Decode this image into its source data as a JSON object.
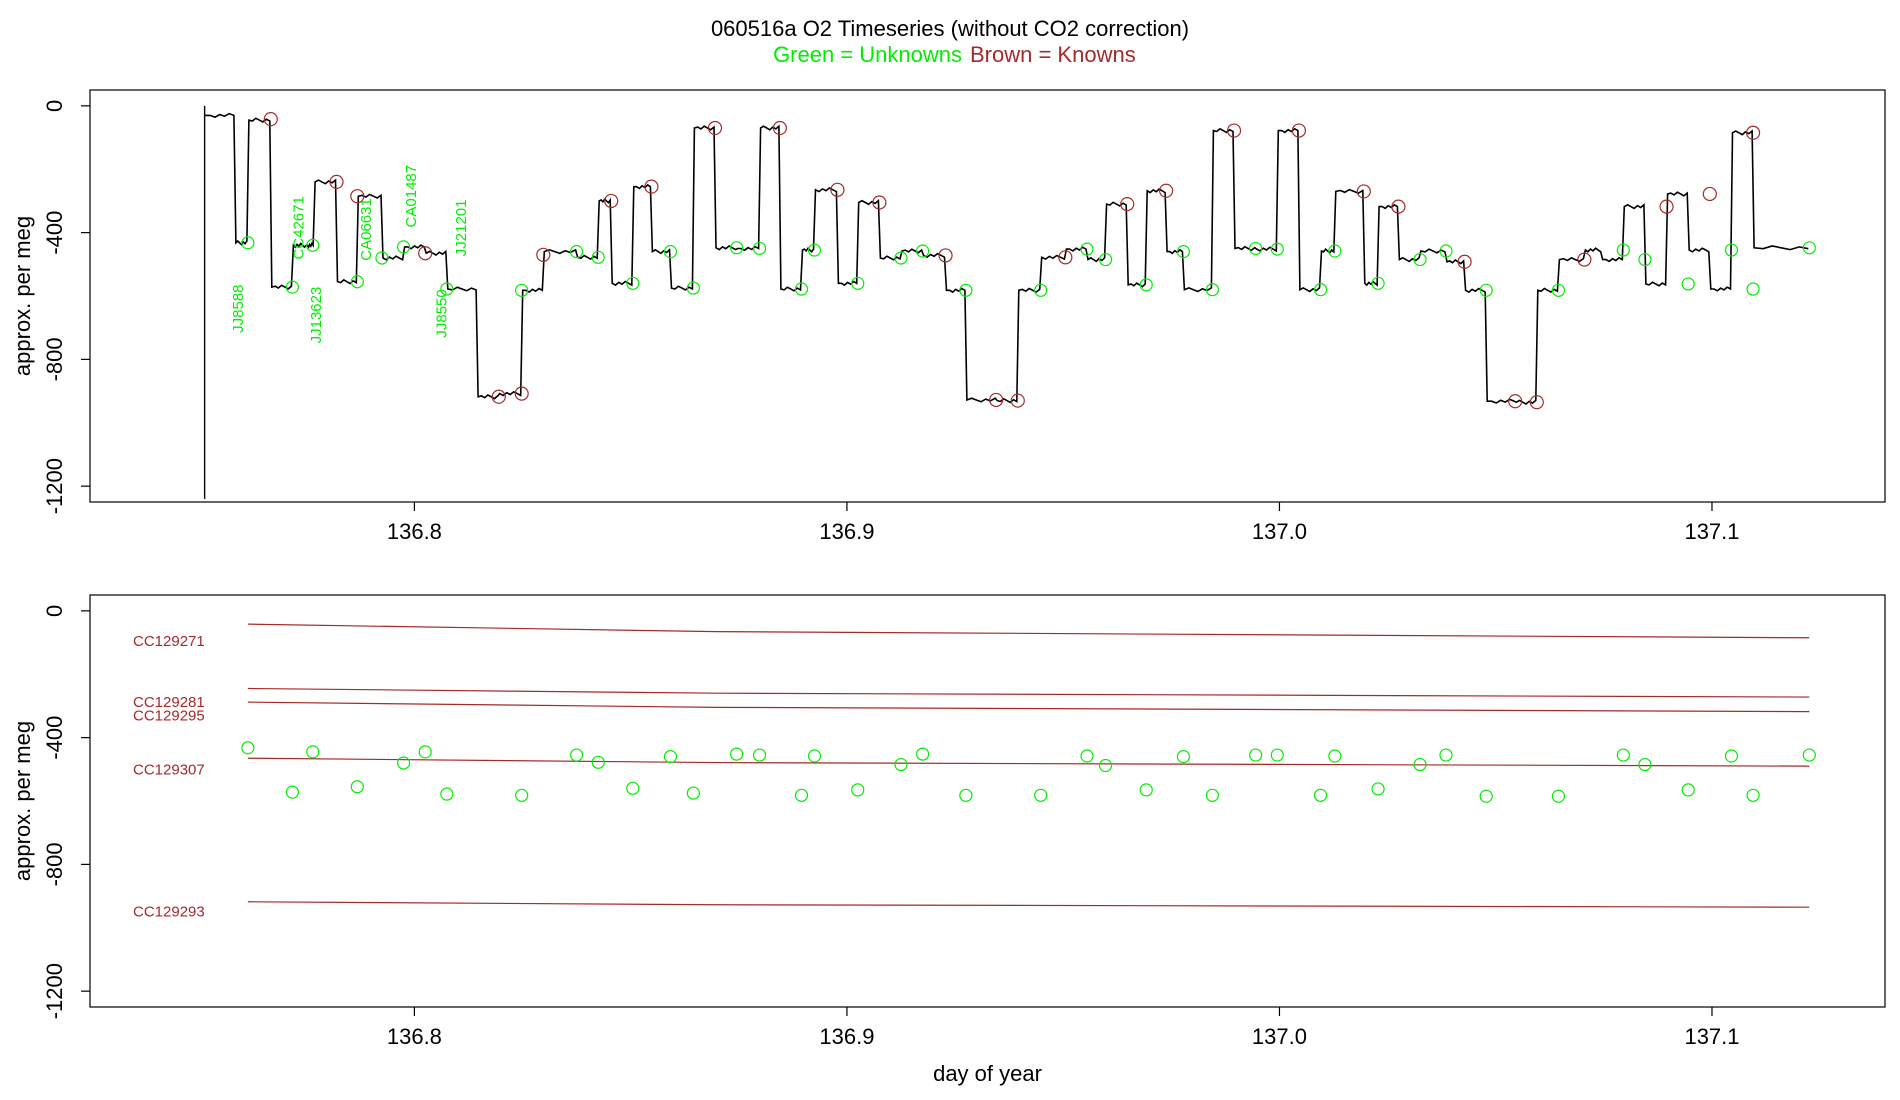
{
  "header": {
    "title": "060516a   O2 Timeseries (without CO2 correction)",
    "legend_unknowns": "Green = Unknowns",
    "legend_knowns": "Brown = Knowns"
  },
  "colors": {
    "unknowns": "#00ee00",
    "knowns": "#a52a2a",
    "trace": "#000000",
    "axis": "#000000"
  },
  "chart_data": [
    {
      "type": "line",
      "panel": "top",
      "ylabel": "approx. per meg",
      "xlabel": "",
      "xlim": [
        136.725,
        137.14
      ],
      "ylim": [
        -1250,
        50
      ],
      "x_ticks": [
        136.8,
        136.9,
        137.0,
        137.1
      ],
      "x_tick_labels": [
        "136.8",
        "136.9",
        "137.0",
        "137.1"
      ],
      "y_ticks": [
        0,
        -400,
        -800,
        -1200
      ],
      "y_tick_labels": [
        "0",
        "-400",
        "-800",
        "-1200"
      ],
      "trace_start_spike": {
        "x": 136.7515,
        "y_from": -1240,
        "y_to": 0
      },
      "trace_steps": [
        [
          136.7515,
          136.7585,
          -30
        ],
        [
          136.7585,
          136.7615,
          -432
        ],
        [
          136.7615,
          136.7668,
          -45
        ],
        [
          136.7668,
          136.7718,
          -572
        ],
        [
          136.7718,
          136.7748,
          -440
        ],
        [
          136.7748,
          136.7768,
          -440
        ],
        [
          136.7768,
          136.782,
          -240
        ],
        [
          136.782,
          136.7868,
          -555
        ],
        [
          136.7868,
          136.7925,
          -285
        ],
        [
          136.7925,
          136.7975,
          -480
        ],
        [
          136.7975,
          136.8025,
          -445
        ],
        [
          136.8025,
          136.8075,
          -465
        ],
        [
          136.8075,
          136.8145,
          -578
        ],
        [
          136.8145,
          136.8195,
          -918
        ],
        [
          136.8195,
          136.8248,
          -908
        ],
        [
          136.8248,
          136.8298,
          -582
        ],
        [
          136.8298,
          136.8375,
          -460
        ],
        [
          136.8375,
          136.8425,
          -478
        ],
        [
          136.8425,
          136.8455,
          -300
        ],
        [
          136.8455,
          136.8505,
          -560
        ],
        [
          136.8505,
          136.8548,
          -255
        ],
        [
          136.8548,
          136.8592,
          -460
        ],
        [
          136.8592,
          136.8645,
          -575
        ],
        [
          136.8645,
          136.8695,
          -70
        ],
        [
          136.8695,
          136.8745,
          -448
        ],
        [
          136.8745,
          136.8798,
          -450
        ],
        [
          136.8798,
          136.8845,
          -70
        ],
        [
          136.8845,
          136.8895,
          -578
        ],
        [
          136.8895,
          136.8925,
          -455
        ],
        [
          136.8925,
          136.8978,
          -265
        ],
        [
          136.8978,
          136.9025,
          -560
        ],
        [
          136.9025,
          136.9075,
          -305
        ],
        [
          136.9075,
          136.9125,
          -480
        ],
        [
          136.9125,
          136.9175,
          -458
        ],
        [
          136.9175,
          136.9228,
          -472
        ],
        [
          136.9228,
          136.9275,
          -582
        ],
        [
          136.9275,
          136.9345,
          -928
        ],
        [
          136.9345,
          136.9395,
          -930
        ],
        [
          136.9395,
          136.9448,
          -582
        ],
        [
          136.9448,
          136.9505,
          -478
        ],
        [
          136.9505,
          136.9555,
          -452
        ],
        [
          136.9555,
          136.9598,
          -485
        ],
        [
          136.9598,
          136.9648,
          -310
        ],
        [
          136.9648,
          136.9692,
          -565
        ],
        [
          136.9692,
          136.9738,
          -268
        ],
        [
          136.9738,
          136.9778,
          -460
        ],
        [
          136.9778,
          136.9845,
          -580
        ],
        [
          136.9845,
          136.9895,
          -78
        ],
        [
          136.9895,
          136.9945,
          -450
        ],
        [
          136.9945,
          136.9995,
          -452
        ],
        [
          136.9995,
          137.0045,
          -78
        ],
        [
          137.0045,
          137.0095,
          -580
        ],
        [
          137.0095,
          137.0128,
          -458
        ],
        [
          137.0128,
          137.0195,
          -270
        ],
        [
          137.0195,
          137.0228,
          -560
        ],
        [
          137.0228,
          137.0275,
          -318
        ],
        [
          137.0275,
          137.0325,
          -485
        ],
        [
          137.0325,
          137.0385,
          -458
        ],
        [
          137.0385,
          137.0428,
          -492
        ],
        [
          137.0428,
          137.0478,
          -582
        ],
        [
          137.0478,
          137.0545,
          -932
        ],
        [
          137.0545,
          137.0595,
          -935
        ],
        [
          137.0595,
          137.0645,
          -582
        ],
        [
          137.0645,
          137.0705,
          -485
        ],
        [
          137.0705,
          137.0745,
          -455
        ],
        [
          137.0745,
          137.0795,
          -485
        ],
        [
          137.0795,
          137.0845,
          -318
        ],
        [
          137.0845,
          137.0895,
          -562
        ],
        [
          137.0895,
          137.0945,
          -278
        ],
        [
          137.0945,
          137.0995,
          -455
        ],
        [
          137.0995,
          137.1045,
          -578
        ],
        [
          137.1045,
          137.1095,
          -85
        ],
        [
          137.1095,
          137.1225,
          -448
        ]
      ],
      "unknown_markers": [
        [
          136.7615,
          -432
        ],
        [
          136.7718,
          -572
        ],
        [
          136.7765,
          -440
        ],
        [
          136.7868,
          -555
        ],
        [
          136.7925,
          -480
        ],
        [
          136.7975,
          -445
        ],
        [
          136.8075,
          -578
        ],
        [
          136.8248,
          -582
        ],
        [
          136.8375,
          -460
        ],
        [
          136.8425,
          -478
        ],
        [
          136.8505,
          -560
        ],
        [
          136.8592,
          -460
        ],
        [
          136.8645,
          -575
        ],
        [
          136.8745,
          -448
        ],
        [
          136.8798,
          -450
        ],
        [
          136.8895,
          -578
        ],
        [
          136.8925,
          -455
        ],
        [
          136.9025,
          -560
        ],
        [
          136.9125,
          -480
        ],
        [
          136.9175,
          -458
        ],
        [
          136.9275,
          -582
        ],
        [
          136.9448,
          -582
        ],
        [
          136.9555,
          -452
        ],
        [
          136.9598,
          -485
        ],
        [
          136.9692,
          -565
        ],
        [
          136.9778,
          -460
        ],
        [
          136.9845,
          -580
        ],
        [
          136.9945,
          -450
        ],
        [
          136.9995,
          -452
        ],
        [
          137.0095,
          -580
        ],
        [
          137.0128,
          -458
        ],
        [
          137.0228,
          -560
        ],
        [
          137.0325,
          -485
        ],
        [
          137.0385,
          -458
        ],
        [
          137.0478,
          -582
        ],
        [
          137.0645,
          -582
        ],
        [
          137.0795,
          -455
        ],
        [
          137.0845,
          -485
        ],
        [
          137.0945,
          -562
        ],
        [
          137.1045,
          -455
        ],
        [
          137.1095,
          -578
        ],
        [
          137.1225,
          -448
        ]
      ],
      "known_markers": [
        [
          136.7668,
          -42
        ],
        [
          136.782,
          -240
        ],
        [
          136.7868,
          -285
        ],
        [
          136.8025,
          -465
        ],
        [
          136.8195,
          -918
        ],
        [
          136.8248,
          -908
        ],
        [
          136.8298,
          -470
        ],
        [
          136.8455,
          -300
        ],
        [
          136.8548,
          -255
        ],
        [
          136.8695,
          -70
        ],
        [
          136.8845,
          -70
        ],
        [
          136.8978,
          -265
        ],
        [
          136.9075,
          -305
        ],
        [
          136.9228,
          -472
        ],
        [
          136.9345,
          -928
        ],
        [
          136.9395,
          -930
        ],
        [
          136.9505,
          -478
        ],
        [
          136.9648,
          -310
        ],
        [
          136.9738,
          -268
        ],
        [
          136.9895,
          -78
        ],
        [
          137.0045,
          -78
        ],
        [
          137.0195,
          -270
        ],
        [
          137.0275,
          -318
        ],
        [
          137.0428,
          -492
        ],
        [
          137.0545,
          -932
        ],
        [
          137.0595,
          -935
        ],
        [
          137.0705,
          -485
        ],
        [
          137.0895,
          -318
        ],
        [
          137.0995,
          -278
        ],
        [
          137.1095,
          -85
        ]
      ],
      "unknown_labels": [
        {
          "text": "JJ8588",
          "x": 136.7595,
          "y": -640
        },
        {
          "text": "CC42671",
          "x": 136.7735,
          "y": -385
        },
        {
          "text": "JJ13623",
          "x": 136.7775,
          "y": -660
        },
        {
          "text": "CA06631",
          "x": 136.789,
          "y": -390
        },
        {
          "text": "CA01487",
          "x": 136.7995,
          "y": -285
        },
        {
          "text": "JJ8550",
          "x": 136.8065,
          "y": -655
        },
        {
          "text": "JJ21201",
          "x": 136.811,
          "y": -385
        }
      ]
    },
    {
      "type": "scatter",
      "panel": "bottom",
      "ylabel": "approx. per meg",
      "xlabel": "day of year",
      "xlim": [
        136.725,
        137.14
      ],
      "ylim": [
        -1250,
        50
      ],
      "x_ticks": [
        136.8,
        136.9,
        137.0,
        137.1
      ],
      "x_tick_labels": [
        "136.8",
        "136.9",
        "137.0",
        "137.1"
      ],
      "y_ticks": [
        0,
        -400,
        -800,
        -1200
      ],
      "y_tick_labels": [
        "0",
        "-400",
        "-800",
        "-1200"
      ],
      "known_lines": [
        {
          "name": "CC129271",
          "y_start": -42,
          "y_end": -85,
          "label_y": -95
        },
        {
          "name": "CC129281",
          "y_start": -245,
          "y_end": -272,
          "label_y": -288
        },
        {
          "name": "CC129295",
          "y_start": -288,
          "y_end": -318,
          "label_y": -330
        },
        {
          "name": "CC129307",
          "y_start": -465,
          "y_end": -490,
          "label_y": -500
        },
        {
          "name": "CC129293",
          "y_start": -918,
          "y_end": -935,
          "label_y": -948
        }
      ],
      "line_x_range": [
        136.7615,
        137.1225
      ],
      "unknowns": [
        [
          136.7615,
          -432
        ],
        [
          136.7718,
          -572
        ],
        [
          136.7765,
          -445
        ],
        [
          136.7868,
          -555
        ],
        [
          136.7975,
          -480
        ],
        [
          136.8025,
          -445
        ],
        [
          136.8075,
          -578
        ],
        [
          136.8248,
          -582
        ],
        [
          136.8375,
          -455
        ],
        [
          136.8425,
          -478
        ],
        [
          136.8505,
          -560
        ],
        [
          136.8592,
          -460
        ],
        [
          136.8645,
          -575
        ],
        [
          136.8745,
          -452
        ],
        [
          136.8798,
          -455
        ],
        [
          136.8895,
          -582
        ],
        [
          136.8925,
          -458
        ],
        [
          136.9025,
          -565
        ],
        [
          136.9125,
          -485
        ],
        [
          136.9175,
          -452
        ],
        [
          136.9275,
          -582
        ],
        [
          136.9448,
          -582
        ],
        [
          136.9555,
          -458
        ],
        [
          136.9598,
          -488
        ],
        [
          136.9692,
          -565
        ],
        [
          136.9778,
          -460
        ],
        [
          136.9845,
          -582
        ],
        [
          136.9945,
          -455
        ],
        [
          136.9995,
          -455
        ],
        [
          137.0095,
          -582
        ],
        [
          137.0128,
          -458
        ],
        [
          137.0228,
          -562
        ],
        [
          137.0325,
          -485
        ],
        [
          137.0385,
          -455
        ],
        [
          137.0478,
          -585
        ],
        [
          137.0645,
          -585
        ],
        [
          137.0795,
          -455
        ],
        [
          137.0845,
          -485
        ],
        [
          137.0945,
          -565
        ],
        [
          137.1045,
          -458
        ],
        [
          137.1095,
          -582
        ],
        [
          137.1225,
          -455
        ]
      ]
    }
  ]
}
